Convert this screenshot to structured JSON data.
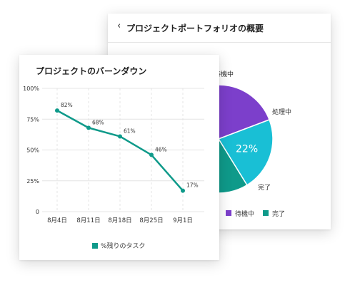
{
  "colors": {
    "teal": "#0f9a8a",
    "cyan": "#19bfd5",
    "purple": "#7c3fcb",
    "grid": "#e4e4e4"
  },
  "portfolio_card": {
    "back_icon": "chevron-left-icon",
    "title": "プロジェクトポートフォリオの概要"
  },
  "burndown_card": {
    "title": "プロジェクトのバーンダウン"
  },
  "chart_data": [
    {
      "type": "pie",
      "slices": [
        {
          "name": "待機中",
          "value": 32,
          "color": "#7c3fcb"
        },
        {
          "name": "処理中",
          "value": 22,
          "color": "#19bfd5"
        },
        {
          "name": "完了",
          "value": 46,
          "color": "#0f9a8a"
        }
      ],
      "legend": [
        "待機中",
        "完了"
      ],
      "legend_position": "bottom"
    },
    {
      "type": "line",
      "title": "プロジェクトのバーンダウン",
      "categories": [
        "8月4日",
        "8月11日",
        "8月18日",
        "8月25日",
        "9月1日"
      ],
      "series": [
        {
          "name": "%残りのタスク",
          "values": [
            82,
            68,
            61,
            46,
            17
          ],
          "color": "#0f9a8a"
        }
      ],
      "ylim": [
        0,
        100
      ],
      "yticks": [
        "0",
        "25%",
        "50%",
        "75%",
        "100%"
      ],
      "grid": true,
      "legend_position": "bottom"
    }
  ]
}
